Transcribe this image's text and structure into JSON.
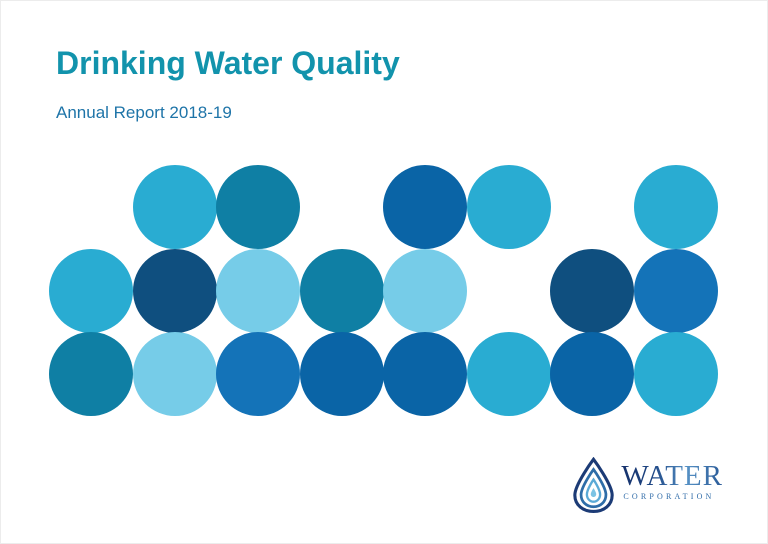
{
  "header": {
    "title": "Drinking Water Quality",
    "subtitle": "Annual Report 2018-19",
    "title_color": "#1293AC",
    "subtitle_color": "#1E74A8"
  },
  "mosaic": {
    "palette": {
      "cyan": "#29ACD2",
      "teal": "#0F7FA4",
      "darkblue": "#0A64A6",
      "navy": "#0F4F7F",
      "lightblue": "#76CCE8",
      "blue": "#1473B8"
    },
    "rows": [
      [
        null,
        "cyan",
        "teal",
        null,
        "darkblue",
        "cyan",
        null,
        "cyan"
      ],
      [
        "cyan",
        "navy",
        "lightblue",
        "teal",
        "lightblue",
        null,
        "navy",
        "blue"
      ],
      [
        "teal",
        "lightblue",
        "blue",
        "darkblue",
        "darkblue",
        "cyan",
        "darkblue",
        "cyan"
      ]
    ]
  },
  "logo": {
    "name": "WATER",
    "subname": "CORPORATION",
    "drop_colors": {
      "outer": "#1C3B76",
      "middle": "#2E6DA8",
      "inner": "#5BAAD6"
    }
  }
}
